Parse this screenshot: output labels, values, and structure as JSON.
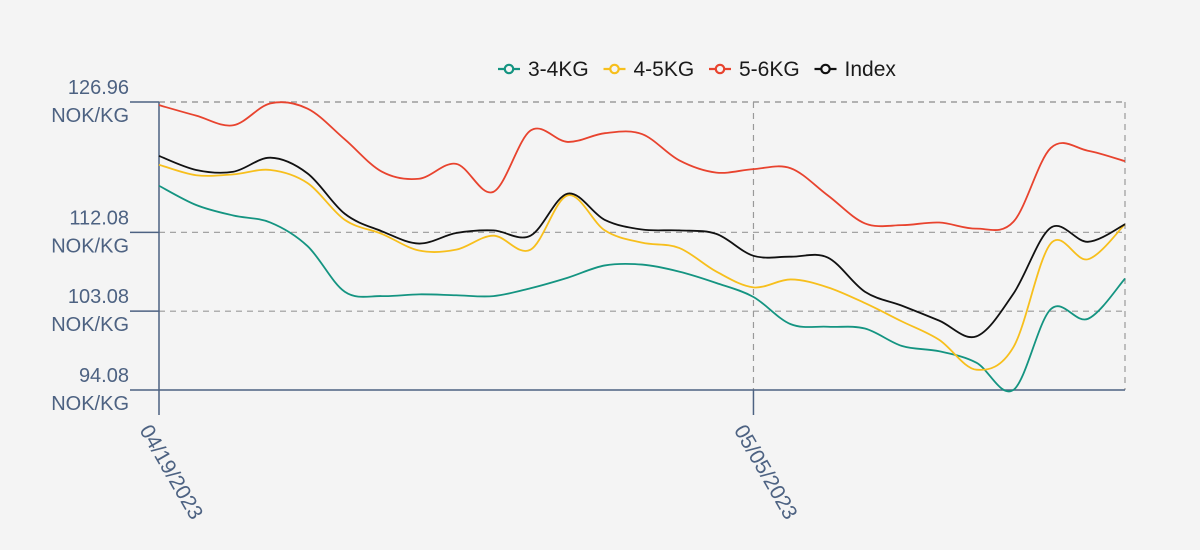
{
  "chart_data": {
    "type": "line",
    "title": "",
    "xlabel": "",
    "ylabel": "",
    "unit": "NOK/KG",
    "x": [
      "04/19/2023",
      "04/20/2023",
      "04/21/2023",
      "04/22/2023",
      "04/23/2023",
      "04/24/2023",
      "04/25/2023",
      "04/26/2023",
      "04/27/2023",
      "04/28/2023",
      "04/29/2023",
      "04/30/2023",
      "05/01/2023",
      "05/02/2023",
      "05/03/2023",
      "05/04/2023",
      "05/05/2023",
      "05/06/2023",
      "05/07/2023",
      "05/08/2023",
      "05/09/2023",
      "05/10/2023",
      "05/11/2023",
      "05/12/2023",
      "05/13/2023",
      "05/14/2023",
      "05/15/2023"
    ],
    "x_ticks": [
      "04/19/2023",
      "05/05/2023"
    ],
    "y_ticks": [
      {
        "value": 126.96,
        "label": "126.96",
        "unit": "NOK/KG"
      },
      {
        "value": 112.08,
        "label": "112.08",
        "unit": "NOK/KG"
      },
      {
        "value": 103.08,
        "label": "103.08",
        "unit": "NOK/KG"
      },
      {
        "value": 94.08,
        "label": "94.08",
        "unit": "NOK/KG"
      }
    ],
    "ylim": [
      94.08,
      126.96
    ],
    "grid": true,
    "legend_position": "top-center",
    "series": [
      {
        "name": "3-4KG",
        "color": "#149481",
        "values": [
          117.4,
          115.2,
          114.0,
          113.2,
          110.5,
          105.3,
          104.8,
          105.0,
          104.9,
          104.8,
          105.7,
          106.9,
          108.3,
          108.4,
          107.6,
          106.3,
          104.7,
          101.6,
          101.3,
          101.1,
          99.1,
          98.5,
          97.2,
          94.1,
          103.3,
          102.2,
          106.8
        ]
      },
      {
        "name": "4-5KG",
        "color": "#f7bf1c",
        "values": [
          119.8,
          118.6,
          118.7,
          119.2,
          117.7,
          113.5,
          111.9,
          110.0,
          110.1,
          111.7,
          110.1,
          116.3,
          112.3,
          110.9,
          110.3,
          107.6,
          105.8,
          106.7,
          105.8,
          104.0,
          101.9,
          99.8,
          96.4,
          99.0,
          110.8,
          109.0,
          113.0
        ]
      },
      {
        "name": "5-6KG",
        "color": "#e8432e",
        "values": [
          126.6,
          125.4,
          124.3,
          126.8,
          126.2,
          122.7,
          119.0,
          118.2,
          119.9,
          116.7,
          123.7,
          122.4,
          123.4,
          123.3,
          120.3,
          118.9,
          119.3,
          119.4,
          116.3,
          113.1,
          112.9,
          113.2,
          112.5,
          113.3,
          121.7,
          121.4,
          120.2
        ]
      },
      {
        "name": "Index",
        "color": "#111111",
        "values": [
          120.8,
          119.2,
          119.0,
          120.6,
          118.8,
          114.2,
          112.2,
          110.8,
          112.0,
          112.3,
          111.7,
          116.5,
          113.5,
          112.4,
          112.3,
          111.9,
          109.4,
          109.3,
          109.2,
          105.3,
          103.7,
          102.0,
          100.2,
          105.1,
          112.6,
          111.0,
          113.0
        ]
      }
    ]
  }
}
